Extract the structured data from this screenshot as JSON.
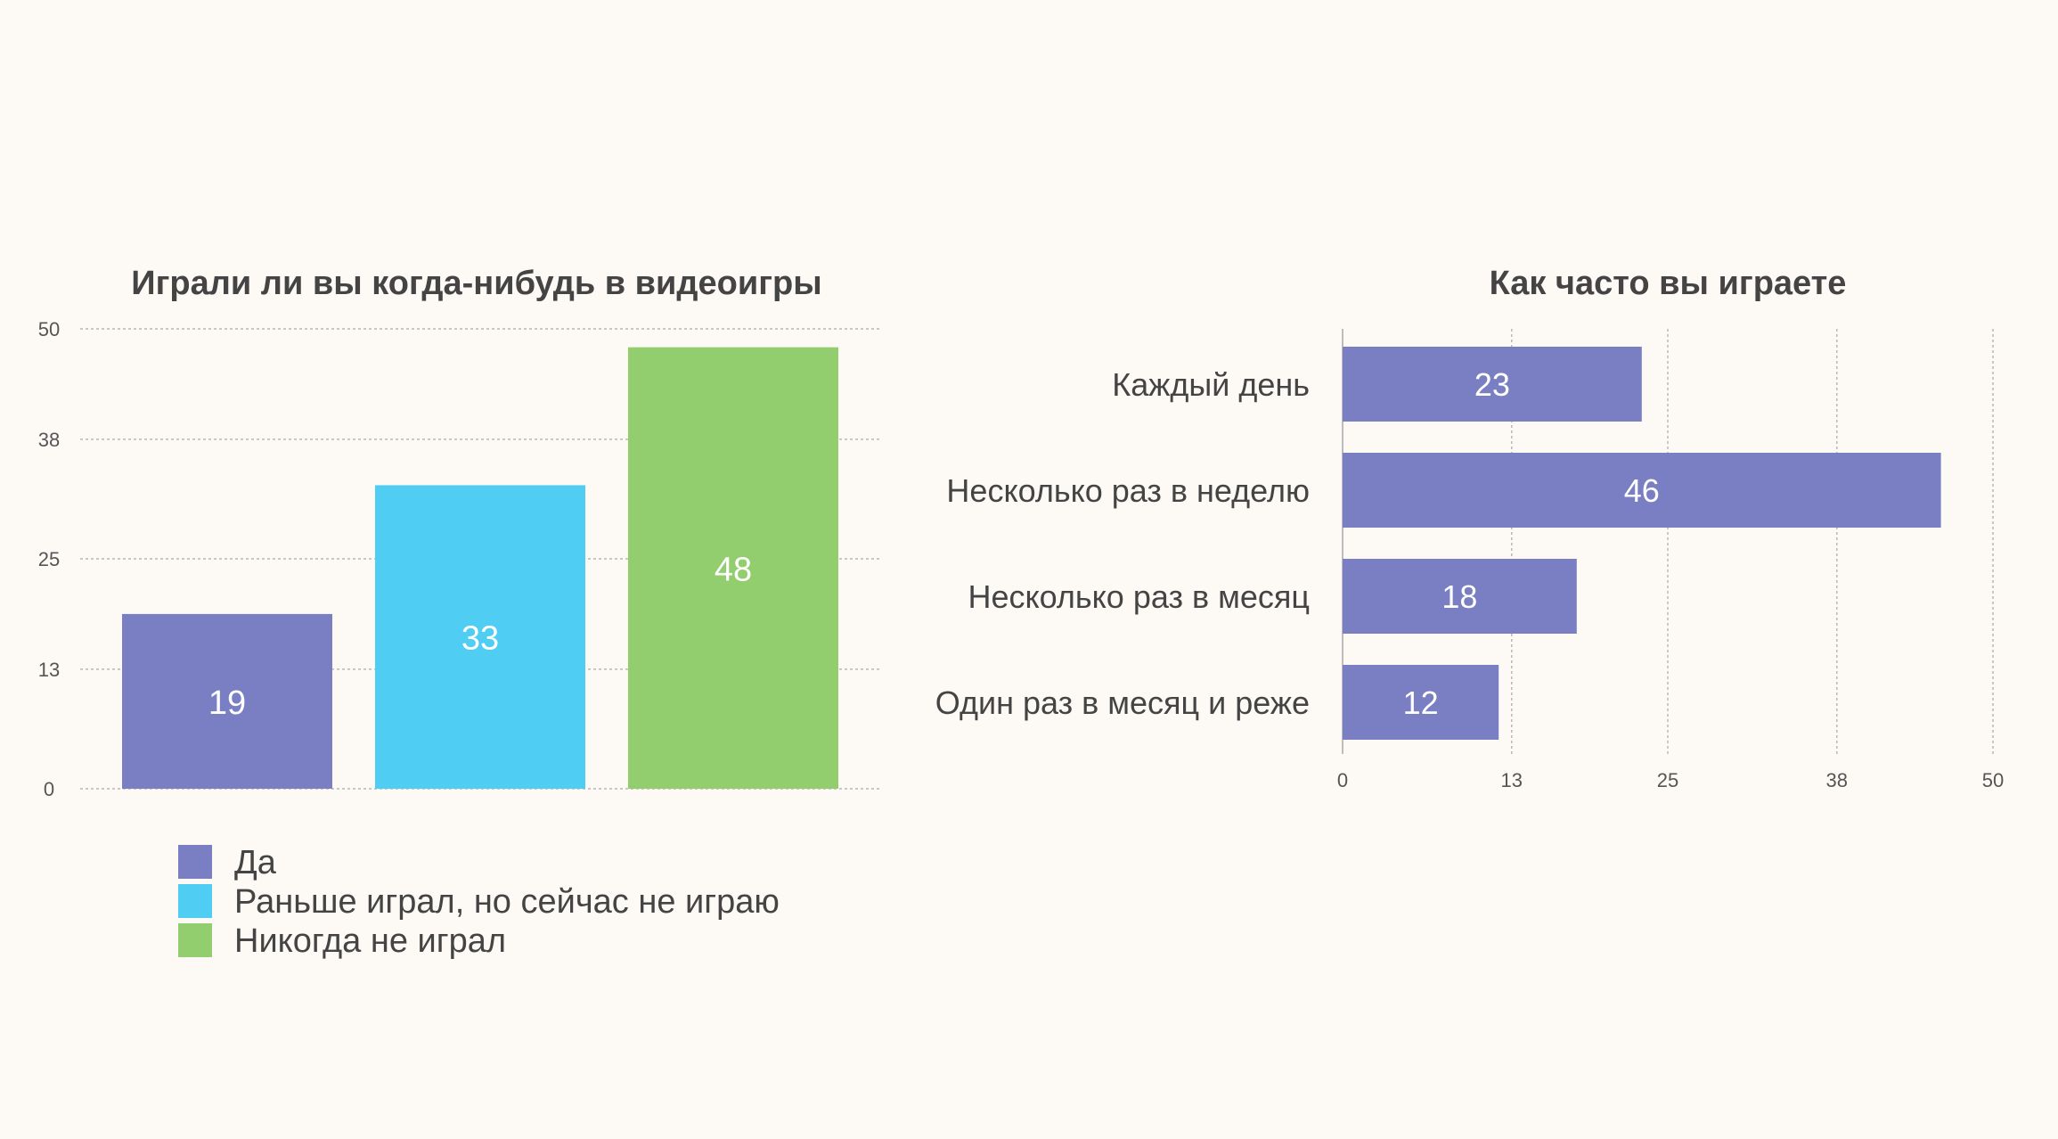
{
  "colors": {
    "background": "#fdfaf6",
    "purple": "#7a7fc3",
    "cyan": "#50cdf3",
    "green": "#92cd6e",
    "text": "#444444",
    "axis_text": "#555555",
    "grid": "#b8b8b8",
    "bar_label": "#ffffff"
  },
  "chart_data": [
    {
      "type": "bar",
      "title": "Играли ли вы когда-нибудь в видеоигры",
      "categories": [
        "Да",
        "Раньше играл, но сейчас не играю",
        "Никогда не играл"
      ],
      "values": [
        19,
        33,
        48
      ],
      "bar_colors": [
        "#7a7fc3",
        "#50cdf3",
        "#92cd6e"
      ],
      "ylim": [
        0,
        50
      ],
      "yticks": [
        "0",
        "13",
        "25",
        "38",
        "50"
      ],
      "grid": true,
      "legend": {
        "position": "bottom",
        "entries": [
          "Да",
          "Раньше играл, но сейчас не играю",
          "Никогда не играл"
        ]
      }
    },
    {
      "type": "bar",
      "orientation": "horizontal",
      "title": "Как часто вы играете",
      "categories": [
        "Каждый день",
        "Несколько раз в неделю",
        "Несколько раз в месяц",
        "Один раз в месяц и реже"
      ],
      "values": [
        23,
        46,
        18,
        12
      ],
      "bar_color": "#7a7fc3",
      "xlim": [
        0,
        50
      ],
      "xticks": [
        "0",
        "13",
        "25",
        "38",
        "50"
      ],
      "grid": true
    }
  ]
}
